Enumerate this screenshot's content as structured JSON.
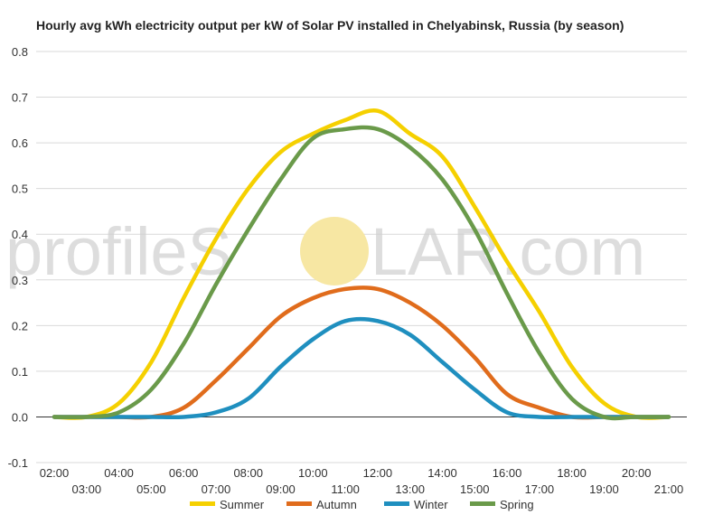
{
  "watermark": {
    "before": "profileS",
    "after": "LAR.com",
    "sun_color": "#f7e7a3"
  },
  "chart_data": {
    "type": "line",
    "title": "Hourly avg kWh electricity output per kW of Solar PV installed in Chelyabinsk, Russia (by season)",
    "xlabel": "",
    "ylabel": "",
    "ylim": [
      -0.1,
      0.8
    ],
    "yticks": [
      "0.8",
      "0.7",
      "0.6",
      "0.5",
      "0.4",
      "0.3",
      "0.2",
      "0.1",
      "0.0",
      "-0.1"
    ],
    "x": [
      "02:00",
      "03:00",
      "04:00",
      "05:00",
      "06:00",
      "07:00",
      "08:00",
      "09:00",
      "10:00",
      "11:00",
      "12:00",
      "13:00",
      "14:00",
      "15:00",
      "16:00",
      "17:00",
      "18:00",
      "19:00",
      "20:00",
      "21:00"
    ],
    "grid": true,
    "legend": "bottom",
    "series": [
      {
        "name": "Summer",
        "color": "#f5d000",
        "values": [
          0.0,
          0.0,
          0.03,
          0.12,
          0.26,
          0.39,
          0.5,
          0.58,
          0.62,
          0.65,
          0.67,
          0.62,
          0.57,
          0.46,
          0.34,
          0.23,
          0.11,
          0.03,
          0.0,
          0.0
        ]
      },
      {
        "name": "Autumn",
        "color": "#e06c1c",
        "values": [
          0.0,
          0.0,
          0.0,
          0.0,
          0.02,
          0.08,
          0.15,
          0.22,
          0.26,
          0.28,
          0.28,
          0.25,
          0.2,
          0.13,
          0.05,
          0.02,
          0.0,
          0.0,
          0.0,
          0.0
        ]
      },
      {
        "name": "Winter",
        "color": "#1f8fbf",
        "values": [
          0.0,
          0.0,
          0.0,
          0.0,
          0.0,
          0.01,
          0.04,
          0.11,
          0.17,
          0.21,
          0.21,
          0.18,
          0.12,
          0.06,
          0.01,
          0.0,
          0.0,
          0.0,
          0.0,
          0.0
        ]
      },
      {
        "name": "Spring",
        "color": "#6a9a4a",
        "values": [
          0.0,
          0.0,
          0.01,
          0.06,
          0.16,
          0.29,
          0.41,
          0.52,
          0.61,
          0.63,
          0.63,
          0.59,
          0.52,
          0.41,
          0.27,
          0.14,
          0.04,
          0.0,
          0.0,
          0.0
        ]
      }
    ]
  }
}
